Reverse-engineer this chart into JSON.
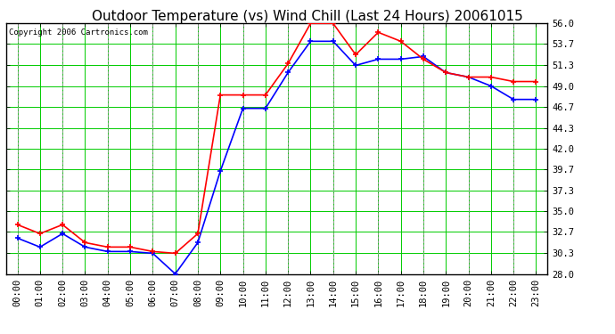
{
  "title": "Outdoor Temperature (vs) Wind Chill (Last 24 Hours) 20061015",
  "copyright": "Copyright 2006 Cartronics.com",
  "x_labels": [
    "00:00",
    "01:00",
    "02:00",
    "03:00",
    "04:00",
    "05:00",
    "06:00",
    "07:00",
    "08:00",
    "09:00",
    "10:00",
    "11:00",
    "12:00",
    "13:00",
    "14:00",
    "15:00",
    "16:00",
    "17:00",
    "18:00",
    "19:00",
    "20:00",
    "21:00",
    "22:00",
    "23:00"
  ],
  "temp": [
    33.5,
    32.5,
    33.5,
    31.5,
    31.0,
    31.0,
    30.5,
    30.3,
    32.5,
    48.0,
    48.0,
    48.0,
    51.5,
    56.0,
    56.0,
    52.5,
    55.0,
    54.0,
    52.0,
    50.5,
    50.0,
    50.0,
    49.5,
    49.5
  ],
  "windchill": [
    32.0,
    31.0,
    32.5,
    31.0,
    30.5,
    30.5,
    30.3,
    28.0,
    31.5,
    39.5,
    46.5,
    46.5,
    50.5,
    54.0,
    54.0,
    51.3,
    52.0,
    52.0,
    52.3,
    50.5,
    50.0,
    49.0,
    47.5,
    47.5
  ],
  "temp_color": "#ff0000",
  "windchill_color": "#0000ff",
  "bg_color": "#ffffff",
  "plot_bg_color": "#ffffff",
  "grid_color": "#00cc00",
  "ylim": [
    28.0,
    56.0
  ],
  "yticks": [
    28.0,
    30.3,
    32.7,
    35.0,
    37.3,
    39.7,
    42.0,
    44.3,
    46.7,
    49.0,
    51.3,
    53.7,
    56.0
  ],
  "ytick_labels": [
    "28.0",
    "30.3",
    "32.7",
    "35.0",
    "37.3",
    "39.7",
    "42.0",
    "44.3",
    "46.7",
    "49.0",
    "51.3",
    "53.7",
    "56.0"
  ],
  "title_fontsize": 11,
  "copyright_fontsize": 6.5,
  "tick_fontsize": 7.5,
  "marker": "+",
  "marker_size": 5,
  "marker_edge_width": 1.2,
  "line_width": 1.2
}
